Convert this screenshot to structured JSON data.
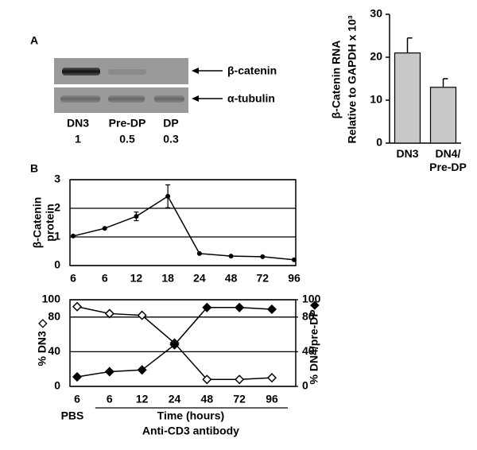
{
  "panel_labels": [
    "A",
    "B"
  ],
  "blot": {
    "bands": [
      "β-catenin",
      "α-tubulin"
    ],
    "lanes": [
      "DN3",
      "Pre-DP",
      "DP"
    ],
    "ratios": [
      1,
      0.5,
      0.3
    ]
  },
  "chart_data": [
    {
      "type": "bar",
      "ylabel": [
        "β-Catenin RNA",
        "Relative to GAPDH x 10³"
      ],
      "categories": [
        "DN3",
        "DN4/\nPre-DP"
      ],
      "values": [
        21,
        13
      ],
      "errors": [
        3.5,
        2
      ],
      "color": "#c8c8c8",
      "ylim": [
        0,
        30
      ],
      "yticks": [
        0,
        10,
        20,
        30
      ],
      "grid": false
    },
    {
      "type": "line",
      "ylabel": [
        "β-Catenin",
        "protein"
      ],
      "categories": [
        "6",
        "6",
        "12",
        "18",
        "24",
        "48",
        "72",
        "96"
      ],
      "series": [
        {
          "color": "#000000",
          "marker": "circle",
          "values": [
            1.03,
            1.3,
            1.72,
            2.42,
            0.42,
            0.33,
            0.31,
            0.2
          ],
          "errors": [
            null,
            null,
            0.15,
            0.4,
            null,
            null,
            null,
            null
          ]
        }
      ],
      "ylim": [
        0,
        3
      ],
      "yticks": [
        0,
        1,
        2,
        3
      ],
      "grid": true
    },
    {
      "type": "line",
      "ylabel": "% DN3 ◇",
      "y2label": "% DN4/pre-DP◆",
      "categories": [
        "6",
        "6",
        "12",
        "24",
        "48",
        "72",
        "96"
      ],
      "series": [
        {
          "color": "#000000",
          "marker": "open-diamond",
          "values": [
            92,
            84,
            82,
            50,
            8,
            8,
            10
          ]
        },
        {
          "color": "#000000",
          "marker": "diamond",
          "axis": "y2",
          "values": [
            11,
            17,
            19,
            48,
            91,
            91,
            89
          ]
        }
      ],
      "ylim": [
        0,
        100
      ],
      "yticks": [
        0,
        40,
        80,
        100
      ],
      "y2lim": [
        0,
        100
      ],
      "y2ticks": [
        0,
        40,
        80,
        100
      ],
      "grid": true,
      "annotations": [
        "PBS",
        "Time (hours)",
        "Anti-CD3 antibody"
      ]
    }
  ]
}
